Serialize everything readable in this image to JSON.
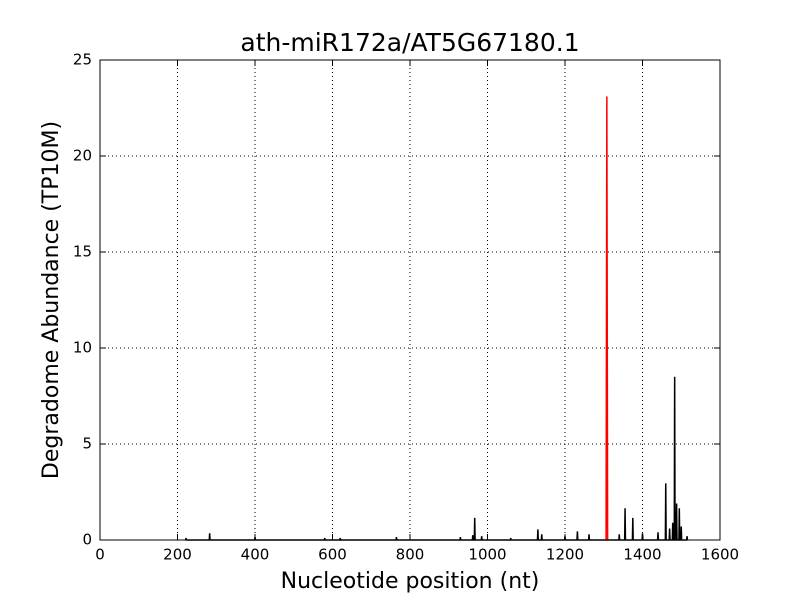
{
  "chart_data": {
    "type": "line",
    "title": "ath-miR172a/AT5G67180.1",
    "xlabel": "Nucleotide position (nt)",
    "ylabel": "Degradome Abundance (TP10M)",
    "xlim": [
      0,
      1600
    ],
    "xticks": [
      0,
      200,
      400,
      600,
      800,
      1000,
      1200,
      1400,
      1600
    ],
    "ylim": [
      0,
      25
    ],
    "yticks": [
      0,
      5,
      10,
      15,
      20,
      25
    ],
    "grid": true,
    "series": [
      {
        "color": "#000000",
        "x": [
          221,
          222,
          223,
          282,
          283,
          284,
          399,
          400,
          401,
          579,
          580,
          581,
          619,
          620,
          621,
          764,
          765,
          766,
          929,
          930,
          931,
          961,
          962,
          963,
          966,
          967,
          968,
          984,
          985,
          986,
          1059,
          1060,
          1061,
          1129,
          1130,
          1131,
          1139,
          1140,
          1141,
          1199,
          1200,
          1201,
          1231,
          1232,
          1233,
          1261,
          1262,
          1263,
          1339,
          1340,
          1341,
          1354,
          1355,
          1356,
          1374,
          1375,
          1376,
          1399,
          1400,
          1401,
          1439,
          1440,
          1441,
          1459,
          1460,
          1461,
          1469,
          1470,
          1471,
          1477,
          1478,
          1479,
          1482,
          1483,
          1484,
          1487,
          1488,
          1489,
          1494,
          1495,
          1496,
          1499,
          1500,
          1501,
          1514,
          1515,
          1516
        ],
        "values": [
          0,
          0.1,
          0,
          0,
          0.35,
          0,
          0,
          0.15,
          0,
          0,
          0.1,
          0,
          0,
          0.1,
          0,
          0,
          0.15,
          0,
          0,
          0.15,
          0,
          0,
          0.25,
          0,
          0,
          1.15,
          0,
          0,
          0.2,
          0,
          0,
          0.1,
          0,
          0,
          0.55,
          0,
          0,
          0.3,
          0,
          0,
          0.2,
          0,
          0,
          0.45,
          0,
          0,
          0.3,
          0,
          0,
          0.3,
          0,
          0,
          1.65,
          0,
          0,
          1.15,
          0,
          0,
          0.35,
          0,
          0,
          0.4,
          0,
          0,
          2.95,
          0,
          0,
          0.6,
          0,
          0,
          0.9,
          0,
          0,
          8.5,
          0,
          0,
          1.9,
          0,
          0,
          1.65,
          0,
          0,
          0.7,
          0,
          0,
          0.2,
          0
        ]
      },
      {
        "color": "#ff0000",
        "x": [
          1306,
          1308,
          1310
        ],
        "values": [
          0,
          23.1,
          0
        ]
      }
    ]
  }
}
